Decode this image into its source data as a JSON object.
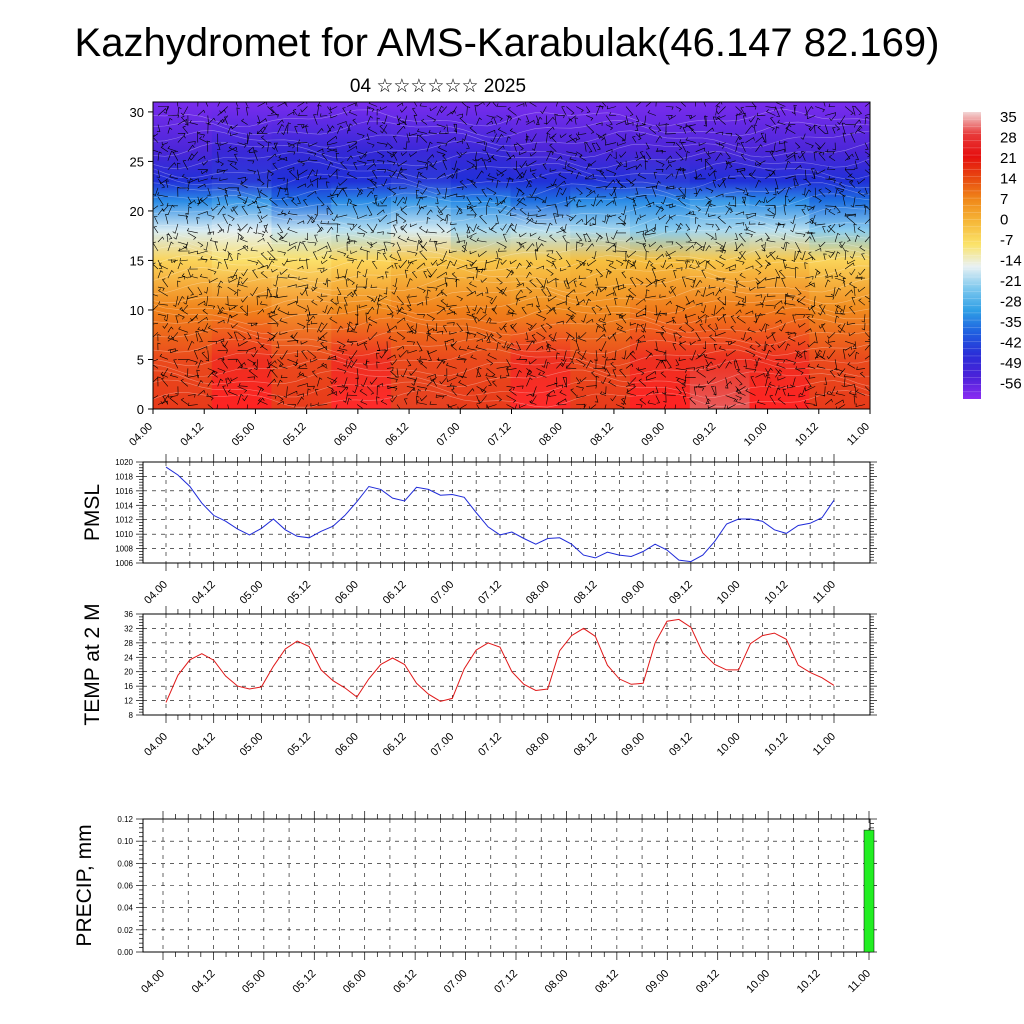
{
  "header": {
    "title": "Kazhydromet for AMS-Karabulak(46.147 82.169)",
    "subtitle": "04 ☆☆☆☆☆☆ 2025"
  },
  "chart_data": [
    {
      "type": "heatmap",
      "y_ticks": [
        "0",
        "5",
        "10",
        "15",
        "20",
        "25",
        "30"
      ],
      "ylim": [
        0,
        31
      ],
      "x_ticks": [
        "04.00",
        "04.12",
        "05.00",
        "05.12",
        "06.00",
        "06.12",
        "07.00",
        "07.12",
        "08.00",
        "08.12",
        "09.00",
        "09.12",
        "10.00",
        "10.12",
        "11.00"
      ],
      "colorbar": {
        "labels": [
          "35",
          "28",
          "21",
          "14",
          "7",
          "0",
          "-7",
          "-14",
          "-21",
          "-28",
          "-35",
          "-42",
          "-49",
          "-56"
        ],
        "colors": [
          "#f2d6d6",
          "#e83a3a",
          "#e50f0f",
          "#e84a10",
          "#f08a1a",
          "#f6b93a",
          "#fbe36a",
          "#e9f1f3",
          "#7dc8ee",
          "#2f9fe6",
          "#1f5fe0",
          "#2a2ed8",
          "#4b22d9",
          "#8b2cf2"
        ]
      },
      "rows": [
        {
          "y": 0,
          "colors": [
            "#e83a1a",
            "#ff2222",
            "#e83a1a",
            "#ff2a2a",
            "#e64020",
            "#e83a1a",
            "#ff2a2a",
            "#e83a1a",
            "#ff2222",
            "#e85a5a",
            "#ff2222",
            "#e83a1a"
          ]
        },
        {
          "y": 5,
          "colors": [
            "#ea4a1c",
            "#ee3020",
            "#ea4a1c",
            "#ee3020",
            "#ea4a1c",
            "#ea4a1c",
            "#ee3020",
            "#ea4a1c",
            "#ee3020",
            "#ee3020",
            "#ee3020",
            "#ea4a1c"
          ]
        },
        {
          "y": 10,
          "colors": [
            "#f0821a",
            "#f0821a",
            "#f3902a",
            "#f08a1e",
            "#f0801a",
            "#f0801a",
            "#f08a1e",
            "#f08a1e",
            "#f07a1a",
            "#f07a1a",
            "#f07a1a",
            "#f08a1e"
          ]
        },
        {
          "y": 15,
          "colors": [
            "#fad45a",
            "#fbe06a",
            "#fbe06a",
            "#fcd65a",
            "#f8c84a",
            "#f8c84a",
            "#f8c84a",
            "#f6c040",
            "#f6c040",
            "#f8c84a",
            "#f8c84a",
            "#fad45a"
          ]
        },
        {
          "y": 18,
          "colors": [
            "#d8ecf2",
            "#e4f0f4",
            "#c8e6f2",
            "#b8e0f0",
            "#d8ecf2",
            "#a8d8ee",
            "#b8e0f0",
            "#a8d8ee",
            "#8ccdee",
            "#a8d8ee",
            "#b8e0f0",
            "#8ccdee"
          ]
        },
        {
          "y": 21,
          "colors": [
            "#2a8ce6",
            "#3a9ae8",
            "#1e6fe0",
            "#2a8ce6",
            "#3a9ae8",
            "#2a8ce6",
            "#1e6fe0",
            "#2a8ce6",
            "#2a8ce6",
            "#3a9ae8",
            "#2a8ce6",
            "#1e6fe0"
          ]
        },
        {
          "y": 23,
          "colors": [
            "#2030d8",
            "#2a3ad8",
            "#2030d8",
            "#2030d8",
            "#2a3ad8",
            "#2030d8",
            "#2030d8",
            "#2030d8",
            "#2a3ad8",
            "#2030d8",
            "#2030d8",
            "#2030d8"
          ]
        },
        {
          "y": 26,
          "colors": [
            "#4a26d8",
            "#3a28d8",
            "#3428d6",
            "#3428d6",
            "#3a28d8",
            "#3a28d8",
            "#4a26d8",
            "#4a26d8",
            "#4a26d8",
            "#4a26d8",
            "#4a26d8",
            "#4a26d8"
          ]
        },
        {
          "y": 31,
          "colors": [
            "#7a2cee",
            "#7a2cee",
            "#7a2cee",
            "#7a2cee",
            "#7a2cee",
            "#7a2cee",
            "#7a2cee",
            "#7a2cee",
            "#7a2cee",
            "#7a2cee",
            "#7a2cee",
            "#7a2cee"
          ]
        }
      ]
    },
    {
      "type": "line",
      "ylabel": "PMSL",
      "ylim": [
        1006,
        1020
      ],
      "y_ticks": [
        "1006",
        "1008",
        "1010",
        "1012",
        "1014",
        "1016",
        "1018",
        "1020"
      ],
      "x_ticks": [
        "04.00",
        "04.12",
        "05.00",
        "05.12",
        "06.00",
        "06.12",
        "07.00",
        "07.12",
        "08.00",
        "08.12",
        "09.00",
        "09.12",
        "10.00",
        "10.12",
        "11.00"
      ],
      "color": "#1e2ad8",
      "x_hours": [
        0,
        3,
        6,
        9,
        12,
        15,
        18,
        21,
        24,
        27,
        30,
        33,
        36,
        39,
        42,
        45,
        48,
        51,
        54,
        57,
        60,
        63,
        66,
        69,
        72,
        75,
        78,
        81,
        84,
        87,
        90,
        93,
        96,
        99,
        102,
        105,
        108,
        111,
        114,
        117,
        120,
        123,
        126,
        129,
        132,
        135,
        138,
        141,
        144,
        147,
        150,
        153,
        156,
        159,
        162,
        165,
        168
      ],
      "values": [
        1019.3,
        1018.2,
        1016.6,
        1014.3,
        1012.6,
        1011.8,
        1010.7,
        1009.9,
        1010.8,
        1012.1,
        1010.6,
        1009.7,
        1009.5,
        1010.4,
        1011.1,
        1012.6,
        1014.5,
        1016.6,
        1016.2,
        1015.0,
        1014.6,
        1016.5,
        1016.2,
        1015.4,
        1015.5,
        1015.1,
        1013.0,
        1011.0,
        1009.9,
        1010.3,
        1009.4,
        1008.6,
        1009.4,
        1009.5,
        1008.6,
        1007.1,
        1006.7,
        1007.5,
        1007.1,
        1006.9,
        1007.6,
        1008.6,
        1007.8,
        1006.4,
        1006.2,
        1007.1,
        1009.0,
        1011.4,
        1012.1,
        1012.1,
        1011.8,
        1010.6,
        1010.1,
        1011.2,
        1011.5,
        1012.3,
        1014.7
      ]
    },
    {
      "type": "line",
      "ylabel": "TEMP at 2 M",
      "ylim": [
        8,
        36
      ],
      "y_ticks": [
        "8",
        "12",
        "16",
        "20",
        "24",
        "28",
        "32",
        "36"
      ],
      "x_ticks": [
        "04.00",
        "04.12",
        "05.00",
        "05.12",
        "06.00",
        "06.12",
        "07.00",
        "07.12",
        "08.00",
        "08.12",
        "09.00",
        "09.12",
        "10.00",
        "10.12",
        "11.00"
      ],
      "color": "#e01818",
      "x_hours": [
        0,
        3,
        6,
        9,
        12,
        15,
        18,
        21,
        24,
        27,
        30,
        33,
        36,
        39,
        42,
        45,
        48,
        51,
        54,
        57,
        60,
        63,
        66,
        69,
        72,
        75,
        78,
        81,
        84,
        87,
        90,
        93,
        96,
        99,
        102,
        105,
        108,
        111,
        114,
        117,
        120,
        123,
        126,
        129,
        132,
        135,
        138,
        141,
        144,
        147,
        150,
        153,
        156,
        159,
        162,
        165,
        168
      ],
      "values": [
        11.5,
        19.0,
        23.3,
        25.0,
        23.2,
        18.8,
        16.0,
        15.2,
        15.8,
        21.5,
        26.3,
        28.5,
        27.0,
        20.5,
        17.5,
        15.5,
        13.0,
        18.0,
        22.0,
        23.8,
        22.0,
        16.8,
        13.8,
        11.8,
        12.6,
        20.8,
        26.0,
        28.0,
        26.8,
        20.0,
        16.5,
        14.8,
        15.2,
        25.8,
        30.0,
        32.0,
        29.8,
        21.8,
        18.0,
        16.5,
        16.8,
        28.0,
        34.0,
        34.5,
        32.3,
        25.2,
        22.0,
        20.5,
        20.5,
        27.8,
        30.0,
        30.7,
        29.0,
        21.8,
        19.8,
        18.3,
        16.2
      ]
    },
    {
      "type": "bar",
      "ylabel": "PRECIP, mm",
      "ylim": [
        0,
        0.12
      ],
      "y_ticks": [
        "0.00",
        "0.02",
        "0.04",
        "0.06",
        "0.08",
        "0.10",
        "0.12"
      ],
      "x_ticks": [
        "04.00",
        "04.12",
        "05.00",
        "05.12",
        "06.00",
        "06.12",
        "07.00",
        "07.12",
        "08.00",
        "08.12",
        "09.00",
        "09.12",
        "10.00",
        "10.12",
        "11.00"
      ],
      "color": "#22ee22",
      "x_hours": [
        168
      ],
      "values": [
        0.11
      ]
    }
  ]
}
